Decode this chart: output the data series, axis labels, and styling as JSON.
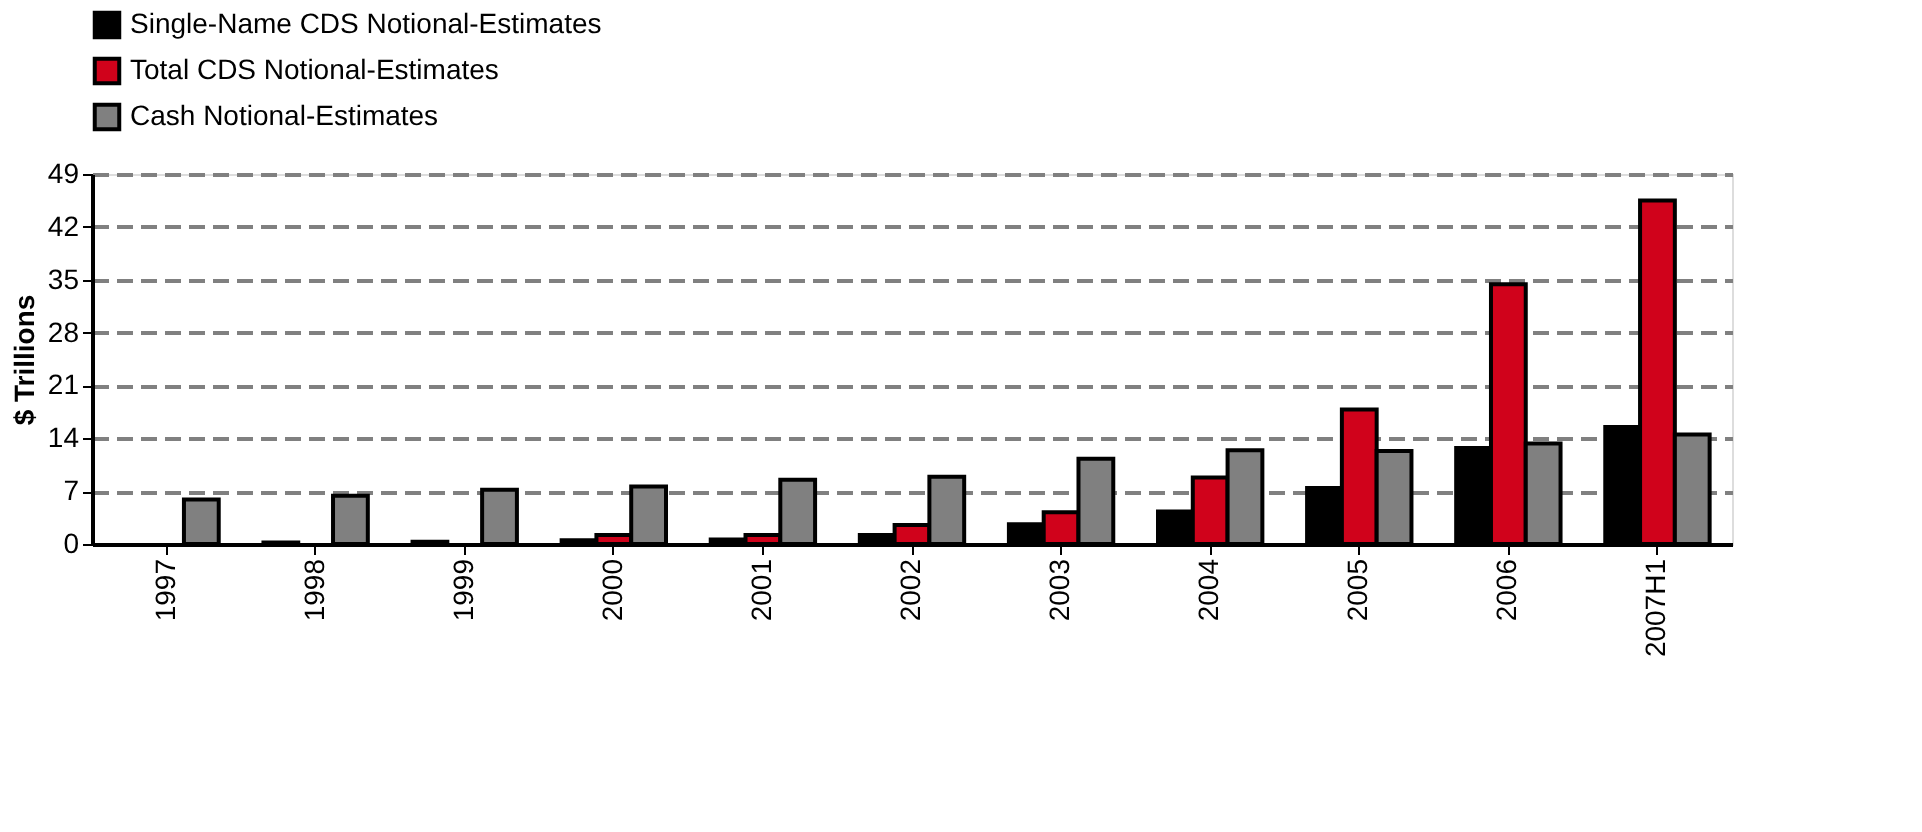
{
  "chart_data": {
    "type": "bar",
    "ylabel": "$ Trillions",
    "categories": [
      "1997",
      "1998",
      "1999",
      "2000",
      "2001",
      "2002",
      "2003",
      "2004",
      "2005",
      "2006",
      "2007H1"
    ],
    "series": [
      {
        "name": "Single-Name CDS Notional-Estimates",
        "color": "#000000",
        "values": [
          null,
          0.2,
          0.3,
          0.5,
          0.6,
          1.2,
          2.6,
          4.3,
          7.4,
          12.7,
          15.5
        ]
      },
      {
        "name": "Total CDS Notional-Estimates",
        "color": "#d0021b",
        "values": [
          null,
          null,
          null,
          1.2,
          1.2,
          2.5,
          4.2,
          8.8,
          17.8,
          34.4,
          45.5
        ]
      },
      {
        "name": "Cash Notional-Estimates",
        "color": "#808080",
        "values": [
          5.9,
          6.4,
          7.2,
          7.6,
          8.5,
          8.9,
          11.3,
          12.4,
          12.3,
          13.3,
          14.5
        ]
      }
    ],
    "ylim": [
      0,
      49
    ],
    "yticks": [
      0,
      7,
      14,
      21,
      28,
      35,
      42,
      49
    ],
    "grid": "y",
    "legend": "top",
    "line_style": "dashed"
  }
}
